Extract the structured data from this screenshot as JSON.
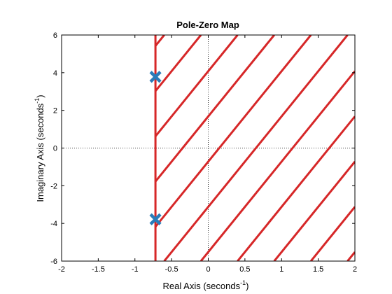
{
  "chart_data": {
    "type": "scatter",
    "title": "Pole-Zero Map",
    "xlabel": "Real Axis (seconds",
    "xlabel_sup": "-1",
    "xlabel_end": ")",
    "ylabel": "Imaginary Axis (seconds",
    "ylabel_sup": "-1",
    "ylabel_end": ")",
    "xlim": [
      -2,
      2
    ],
    "ylim": [
      -6,
      6
    ],
    "xticks": [
      -2,
      -1.5,
      -1,
      -0.5,
      0,
      0.5,
      1,
      1.5,
      2
    ],
    "xtick_labels": [
      "-2",
      "-1.5",
      "-1",
      "-0.5",
      "0",
      "0.5",
      "1",
      "1.5",
      "2"
    ],
    "yticks": [
      -6,
      -4,
      -2,
      0,
      2,
      4,
      6
    ],
    "ytick_labels": [
      "-6",
      "-4",
      "-2",
      "0",
      "2",
      "4",
      "6"
    ],
    "grid": false,
    "reference_lines": {
      "x": 0,
      "y": 0,
      "style": "dotted"
    },
    "poles": [
      {
        "x": -0.72,
        "y": 3.78
      },
      {
        "x": -0.72,
        "y": -3.78
      }
    ],
    "region": {
      "boundary_x": -0.72,
      "side": "right",
      "hatch": "diagonal",
      "hatch_offsets": [
        -15.12,
        -12.72,
        -10.32,
        -7.92,
        -5.52,
        -3.12,
        -0.72,
        1.68,
        4.08,
        6.48,
        8.88,
        11.28,
        13.68,
        16.08
      ],
      "hatch_slope": 4.8,
      "color": "#d62728"
    },
    "marker_color": "#2b7bb9"
  }
}
